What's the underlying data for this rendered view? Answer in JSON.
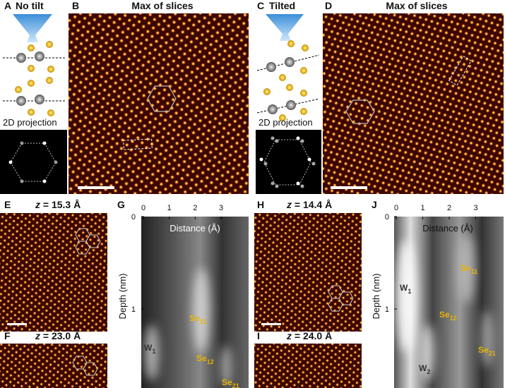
{
  "panels": {
    "A": {
      "letter": "A",
      "title": "No tilt",
      "caption": "2D projection"
    },
    "B": {
      "letter": "B",
      "title": "Max of slices"
    },
    "C": {
      "letter": "C",
      "title": "Tilted",
      "caption": "2D projection"
    },
    "D": {
      "letter": "D",
      "title": "Max of slices"
    },
    "E": {
      "letter": "E",
      "var": "z",
      "value": "= 15.3 Å"
    },
    "F": {
      "letter": "F",
      "var": "z",
      "value": "= 23.0 Å"
    },
    "G": {
      "letter": "G",
      "xticks": [
        0,
        1,
        2,
        3
      ],
      "yticks": [
        0,
        1
      ],
      "xlabel": "Distance (Å)",
      "ylabel": "Depth (nm)",
      "labels": [
        {
          "base": "Se",
          "sub": "11"
        },
        {
          "base": "Se",
          "sub": "12"
        },
        {
          "base": "Se",
          "sub": "21"
        },
        {
          "base": "W",
          "sub": "1"
        }
      ]
    },
    "H": {
      "letter": "H",
      "var": "z",
      "value": "= 14.4 Å"
    },
    "I": {
      "letter": "I",
      "var": "z",
      "value": "= 24.0 Å"
    },
    "J": {
      "letter": "J",
      "xticks": [
        0,
        1,
        2,
        3
      ],
      "yticks": [
        0,
        1
      ],
      "xlabel": "Distance (Å)",
      "ylabel": "Depth (nm)",
      "labels": [
        {
          "base": "Se",
          "sub": "11"
        },
        {
          "base": "W",
          "sub": "1"
        },
        {
          "base": "Se",
          "sub": "12"
        },
        {
          "base": "Se",
          "sub": "21"
        },
        {
          "base": "W",
          "sub": "2"
        }
      ]
    }
  }
}
